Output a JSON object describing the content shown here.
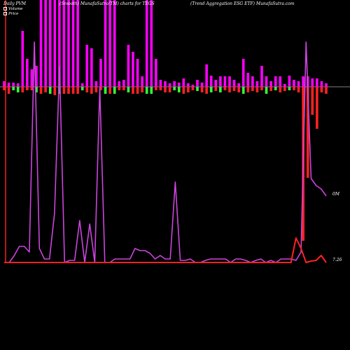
{
  "header": {
    "label_pvm": "Daily PVM",
    "label_smooth": "(Smooth) MunafaSutra(TM) charts for TEGS",
    "label_name": "(Trend Aggregation  ESG ETF) MunafaSutra.com"
  },
  "legend": {
    "volume": "Volume",
    "price": "Price"
  },
  "right_labels": {
    "pvm_end": "0M",
    "price_end": "7.26"
  },
  "colors": {
    "background": "#000000",
    "up_bar": "#ff00ff",
    "down_bar": "#ff2222",
    "green_bar": "#33ff33",
    "pvm_line": "#cc44dd",
    "price_line": "#ff2222",
    "price_line_upper": "#cc44dd",
    "zero_line": "#aaaaaa"
  },
  "chart_data": {
    "type": "bar",
    "title": "",
    "series": [
      {
        "values": [
          8,
          6,
          6,
          5,
          80,
          40,
          25,
          30,
          300,
          300,
          300,
          300,
          300,
          300,
          300,
          300,
          300,
          5,
          60,
          55,
          8,
          40,
          300,
          300,
          300,
          8,
          10,
          60,
          50,
          40,
          15,
          300,
          300,
          40,
          10,
          8,
          5,
          8,
          6,
          12,
          5,
          3,
          10,
          6,
          32,
          16,
          10,
          15,
          15,
          15,
          10,
          5,
          40,
          20,
          15,
          8,
          30,
          15,
          8,
          15,
          15,
          4,
          16,
          10,
          8,
          15,
          15,
          12,
          12,
          8,
          5
        ]
      },
      {
        "values": [
          -5,
          -10,
          -5,
          -8,
          -8,
          -5,
          -5,
          -8,
          -10,
          -8,
          -10,
          -12,
          -10,
          -10,
          -10,
          -10,
          -10,
          -5,
          -8,
          -10,
          -8,
          -5,
          -10,
          -10,
          -10,
          -5,
          -5,
          -8,
          -10,
          -10,
          -8,
          -10,
          -10,
          -5,
          -5,
          -8,
          -8,
          -5,
          -8,
          -10,
          -8,
          -5,
          -6,
          -8,
          -10,
          -8,
          -6,
          -8,
          -5,
          -8,
          -6,
          -8,
          -10,
          -8,
          -6,
          -8,
          -5,
          -10,
          -6,
          -5,
          -8,
          -6,
          -5,
          -5,
          -8,
          -10,
          -8,
          -6,
          -5,
          -5,
          -10
        ]
      }
    ],
    "pvm_line": [
      375,
      375,
      365,
      352,
      352,
      360,
      60,
      355,
      370,
      370,
      305,
      95,
      375,
      372,
      372,
      315,
      375,
      320,
      375,
      125,
      375,
      375,
      370,
      370,
      370,
      370,
      355,
      358,
      358,
      362,
      370,
      365,
      370,
      370,
      260,
      372,
      372,
      370,
      375,
      375,
      372,
      370,
      370,
      370,
      370,
      375,
      370,
      370,
      372,
      375,
      372,
      370,
      375,
      372,
      375,
      370,
      370,
      370,
      372,
      360,
      60,
      255,
      265,
      270,
      280
    ],
    "price_line": [
      375,
      375,
      375,
      375,
      375,
      375,
      375,
      375,
      375,
      375,
      375,
      375,
      375,
      375,
      375,
      375,
      375,
      375,
      375,
      375,
      375,
      375,
      375,
      375,
      375,
      375,
      375,
      375,
      375,
      375,
      375,
      375,
      375,
      375,
      375,
      375,
      375,
      375,
      375,
      375,
      375,
      375,
      375,
      375,
      375,
      375,
      375,
      375,
      375,
      375,
      375,
      375,
      375,
      375,
      375,
      375,
      375,
      375,
      340,
      355,
      375,
      373,
      372,
      365,
      375
    ]
  }
}
